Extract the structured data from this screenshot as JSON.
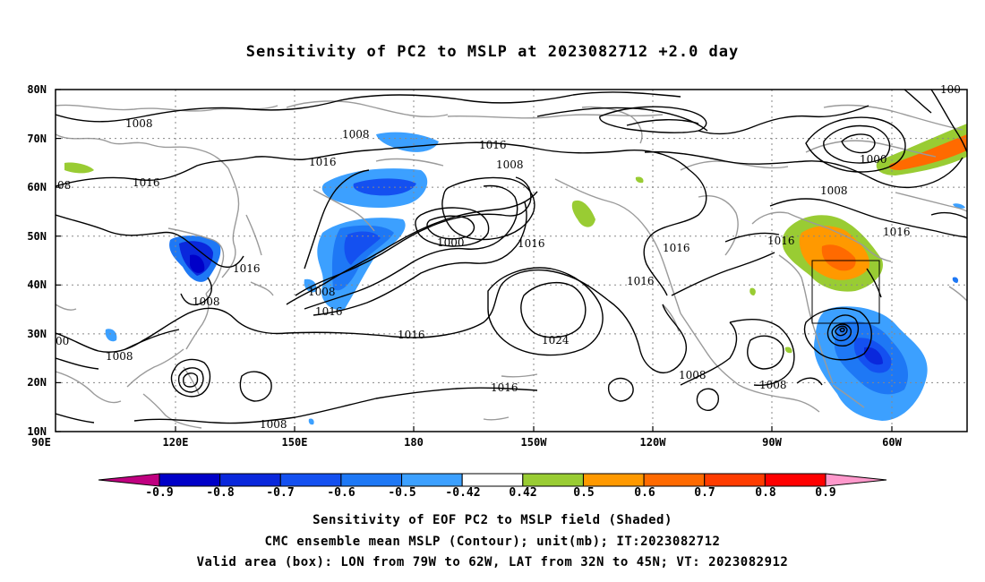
{
  "title": "Sensitivity of PC2 to MSLP at 2023082712 +2.0 day",
  "lat_labels": [
    "80N",
    "70N",
    "60N",
    "50N",
    "40N",
    "30N",
    "20N",
    "10N"
  ],
  "lon_labels": [
    "90E",
    "120E",
    "150E",
    "180",
    "150W",
    "120W",
    "90W",
    "60W"
  ],
  "contour_labels": [
    "1008",
    "1008",
    "1016",
    "1016",
    "1008",
    "1016",
    "1000",
    "1016",
    "1016",
    "1008",
    "1016",
    "1008",
    "1016",
    "1008",
    "1016",
    "1024",
    "1016",
    "1008",
    "1008",
    "1000",
    "1008",
    "1016",
    "1016",
    "00",
    "08",
    "1008",
    "100"
  ],
  "colorbar": {
    "labels": [
      "-0.9",
      "-0.8",
      "-0.7",
      "-0.6",
      "-0.5",
      "-0.42",
      "0.42",
      "0.5",
      "0.6",
      "0.7",
      "0.8",
      "0.9"
    ],
    "colors": [
      "#c00080",
      "#0000c8",
      "#0a28dc",
      "#1450f0",
      "#1e78f5",
      "#3ca0ff",
      "#ffffff",
      "#99cc33",
      "#ff9900",
      "#ff6a00",
      "#ff3c00",
      "#ff0000",
      "#ff99cc"
    ]
  },
  "captions": [
    "Sensitivity of EOF PC2 to MSLP field (Shaded)",
    "CMC ensemble mean MSLP (Contour); unit(mb); IT:2023082712",
    "Valid area (box): LON from 79W to 62W, LAT from 32N to 45N; VT: 2023082912"
  ]
}
